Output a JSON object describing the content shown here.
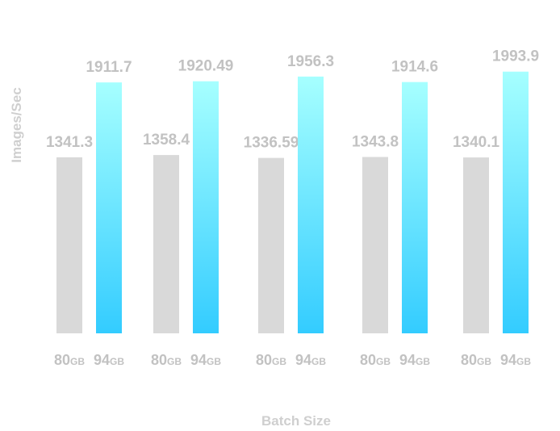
{
  "chart_data": {
    "type": "bar",
    "ylabel": "Images/Sec",
    "xlabel": "Batch Size",
    "ylim": [
      0,
      2060
    ],
    "grid": false,
    "groups": [
      {
        "bars": [
          {
            "value": 1341.3,
            "label": "1341.3",
            "tick": "80",
            "unit": "GB"
          },
          {
            "value": 1911.7,
            "label": "1911.7",
            "tick": "94",
            "unit": "GB"
          }
        ]
      },
      {
        "bars": [
          {
            "value": 1358.4,
            "label": "1358.4",
            "tick": "80",
            "unit": "GB"
          },
          {
            "value": 1920.49,
            "label": "1920.49",
            "tick": "94",
            "unit": "GB"
          }
        ]
      },
      {
        "bars": [
          {
            "value": 1336.59,
            "label": "1336.59",
            "tick": "80",
            "unit": "GB"
          },
          {
            "value": 1956.3,
            "label": "1956.3",
            "tick": "94",
            "unit": "GB"
          }
        ]
      },
      {
        "bars": [
          {
            "value": 1343.8,
            "label": "1343.8",
            "tick": "80",
            "unit": "GB"
          },
          {
            "value": 1914.6,
            "label": "1914.6",
            "tick": "94",
            "unit": "GB"
          }
        ]
      },
      {
        "bars": [
          {
            "value": 1340.1,
            "label": "1340.1",
            "tick": "80",
            "unit": "GB"
          },
          {
            "value": 1993.9,
            "label": "1993.9",
            "tick": "94",
            "unit": "GB"
          }
        ]
      }
    ],
    "colors": {
      "bar_80": "#d9d9d9",
      "bar_94_top": "#a6ffff",
      "bar_94_bottom": "#33ccff",
      "text": "#c2c2c2"
    }
  }
}
